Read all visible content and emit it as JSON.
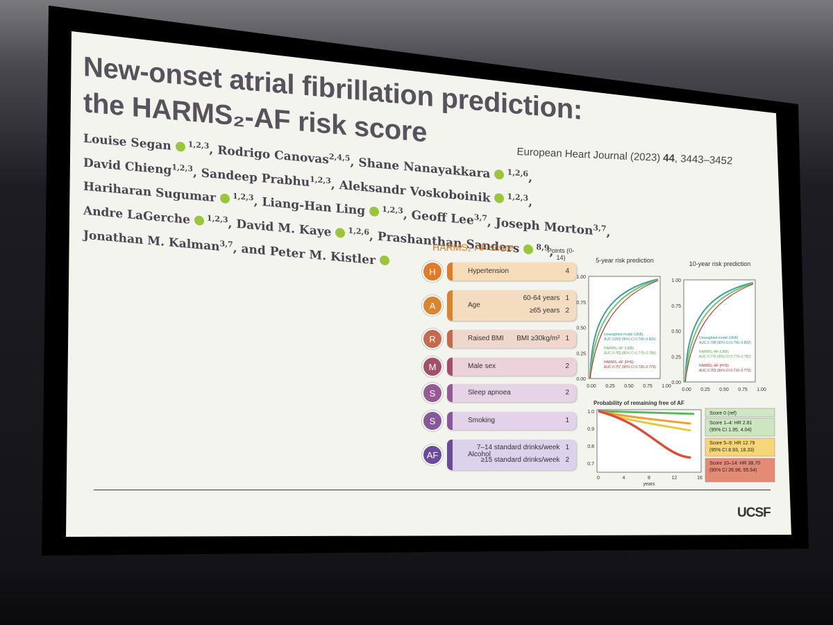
{
  "slide": {
    "title": [
      "New-onset atrial fibrillation prediction:",
      "the HARMS₂-AF risk score"
    ],
    "citation": {
      "journal": "European Heart Journal (2023)",
      "volume": "44",
      "pages": ", 3443–3452"
    },
    "authors": [
      [
        {
          "text": "Louise Segan",
          "orcid": true,
          "sup": "1,2,3"
        },
        {
          "text": ", Rodrigo Canovas",
          "sup": "2,4,5"
        },
        {
          "text": ", Shane Nanayakkara",
          "orcid": true,
          "sup": "1,2,6"
        },
        {
          "text": ","
        }
      ],
      [
        {
          "text": "David Chieng",
          "sup": "1,2,3"
        },
        {
          "text": ", Sandeep Prabhu",
          "sup": "1,2,3"
        },
        {
          "text": ", Aleksandr Voskoboinik",
          "orcid": true,
          "sup": "1,2,3"
        },
        {
          "text": ","
        }
      ],
      [
        {
          "text": "Hariharan Sugumar",
          "orcid": true,
          "sup": "1,2,3"
        },
        {
          "text": ", Liang-Han Ling",
          "orcid": true,
          "sup": "1,2,3"
        },
        {
          "text": ", Geoff Lee",
          "sup": "3,7"
        },
        {
          "text": ", Joseph Morton",
          "sup": "3,7"
        },
        {
          "text": ","
        }
      ],
      [
        {
          "text": "Andre LaGerche",
          "orcid": true,
          "sup": "1,2,3"
        },
        {
          "text": ", David M. Kaye",
          "orcid": true,
          "sup": "1,2,6"
        },
        {
          "text": ", Prashanthan Sanders",
          "orcid": true,
          "sup": "8,9"
        },
        {
          "text": ","
        }
      ],
      [
        {
          "text": "Jonathan M. Kalman",
          "sup": "3,7"
        },
        {
          "text": ", and Peter M. Kistler",
          "orcid": true
        }
      ]
    ],
    "figure": {
      "score_title": "HARMS₂-AF score",
      "points_header": "Points (0-14)",
      "items": [
        {
          "letter": "H",
          "factor": "Hypertension",
          "criteria": [
            {
              "points": 4
            }
          ]
        },
        {
          "letter": "A",
          "factor": "Age",
          "criteria": [
            {
              "label": "60-64 years",
              "points": 1
            },
            {
              "label": "≥65 years",
              "points": 2
            }
          ]
        },
        {
          "letter": "R",
          "factor": "Raised BMI",
          "criteria": [
            {
              "label": "BMI ≥30kg/m²",
              "points": 1
            }
          ]
        },
        {
          "letter": "M",
          "factor": "Male sex",
          "criteria": [
            {
              "points": 2
            }
          ]
        },
        {
          "letter": "S",
          "factor": "Sleep apnoea",
          "criteria": [
            {
              "points": 2
            }
          ]
        },
        {
          "letter": "S",
          "factor": "Smoking",
          "criteria": [
            {
              "points": 1
            }
          ]
        },
        {
          "letter": "AF",
          "factor": "Alcohol",
          "criteria": [
            {
              "label": "7–14 standard drinks/week",
              "points": 1
            },
            {
              "label": "≥15 standard drinks/week",
              "points": 2
            }
          ]
        }
      ],
      "roc_ticks": [
        "0.00",
        "0.25",
        "0.50",
        "0.75",
        "1.00"
      ],
      "roc": [
        {
          "title": "5-year risk prediction",
          "models": [
            {
              "name": "Unweighted model (UKB)",
              "auc": "AUC 0.802 (95% CI 0.796–0.805)"
            },
            {
              "name": "HARMS₂-AF (UKB)",
              "auc": "AUC 0.782 (95% CI 0.775–0.789)"
            },
            {
              "name": "HARMS₂-AF (FHS)",
              "auc": "AUC 0.757 (95% CI 0.735–0.779)"
            }
          ]
        },
        {
          "title": "10-year risk prediction",
          "models": [
            {
              "name": "Unweighted model (UKB)",
              "auc": "AUC 0.798 (95% CI 0.795–0.802)"
            },
            {
              "name": "HARMS₂-AF (UKB)",
              "auc": "AUC 0.776 (95% CI 0.770–0.782)"
            },
            {
              "name": "HARMS₂-AF (FHS)",
              "auc": "AUC 0.753 (95% CI 0.733–0.775)"
            }
          ]
        }
      ],
      "km": {
        "title": "Probability of remaining free of AF",
        "yticks": [
          "1.0",
          "0.9",
          "0.8",
          "0.7"
        ],
        "xticks": [
          "0",
          "4",
          "8",
          "12",
          "16"
        ],
        "xlabel": "years",
        "groups": [
          {
            "label": "Score 0 (ref)"
          },
          {
            "label": "Score 1–4: HR 2.81",
            "ci": "(95% CI 1.95, 4.04)"
          },
          {
            "label": "Score 5–9: HR 12.79",
            "ci": "(95% CI 8.93, 18.33)"
          },
          {
            "label": "Score 10–14: HR 38.70",
            "ci": "(95% CI 26.96, 55.54)"
          }
        ]
      }
    },
    "logo": "UCSF"
  }
}
